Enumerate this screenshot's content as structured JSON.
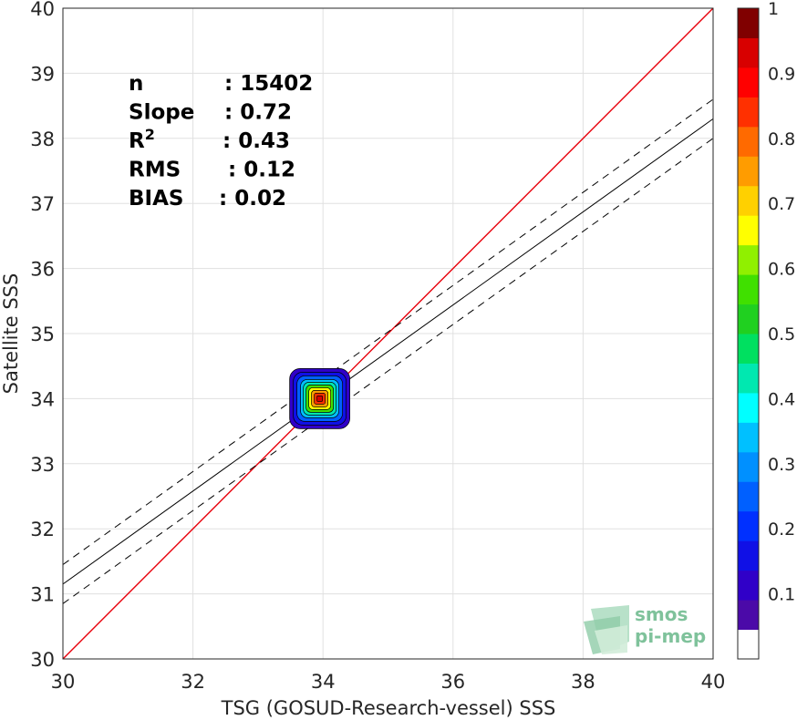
{
  "chart_data": {
    "type": "scatter",
    "xlabel": "TSG (GOSUD-Research-vessel) SSS",
    "ylabel": "Satellite SSS",
    "xlim": [
      30,
      40
    ],
    "ylim": [
      30,
      40
    ],
    "xticks": [
      "30",
      "32",
      "34",
      "36",
      "38",
      "40"
    ],
    "yticks": [
      "30",
      "31",
      "32",
      "33",
      "34",
      "35",
      "36",
      "37",
      "38",
      "39",
      "40"
    ],
    "grid": true,
    "stats": [
      {
        "name": "n",
        "sep": ": ",
        "value": "15402"
      },
      {
        "name": "Slope",
        "sep": ": ",
        "value": "0.72"
      },
      {
        "name": "R",
        "sup": "2",
        "sep": ": ",
        "value": "0.43"
      },
      {
        "name": "RMS",
        "sep": ": ",
        "value": "0.12"
      },
      {
        "name": "BIAS",
        "sep": ": ",
        "value": "0.02"
      }
    ],
    "one_to_one_line": {
      "x": [
        30,
        40
      ],
      "y": [
        30,
        40
      ],
      "color": "#e8000b"
    },
    "fit_line": {
      "x": [
        30,
        40
      ],
      "y": [
        31.15,
        38.3
      ]
    },
    "fit_bounds_dashed": [
      {
        "x": [
          30,
          40
        ],
        "y": [
          31.45,
          38.6
        ]
      },
      {
        "x": [
          30,
          40
        ],
        "y": [
          30.85,
          38.0
        ]
      }
    ],
    "density_center": {
      "x": 33.95,
      "y": 34.0
    },
    "colorbar": {
      "range": [
        0,
        1
      ],
      "ticks": [
        "0.1",
        "0.2",
        "0.3",
        "0.4",
        "0.5",
        "0.6",
        "0.7",
        "0.8",
        "0.9",
        "1"
      ],
      "colors": [
        "#ffffff",
        "#4b0aa8",
        "#3000c8",
        "#1010e6",
        "#0030ff",
        "#0060ff",
        "#0090ff",
        "#00c0ff",
        "#00ffff",
        "#00e8b0",
        "#00e060",
        "#20d020",
        "#40e000",
        "#90f000",
        "#ffff00",
        "#ffd000",
        "#ff9c00",
        "#ff6a00",
        "#ff3000",
        "#ff0000",
        "#d80000",
        "#800000"
      ]
    }
  },
  "logo": {
    "line1": "smos",
    "line2": "pi-mep"
  }
}
